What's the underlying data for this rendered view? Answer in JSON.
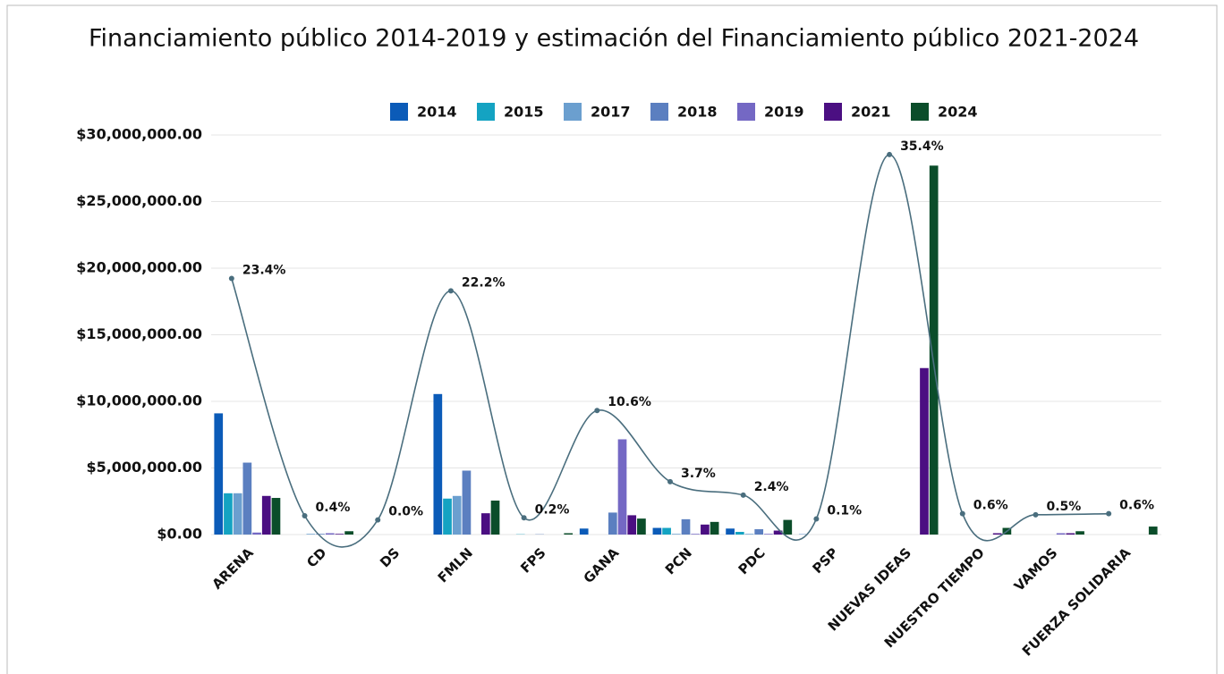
{
  "chart_data": {
    "type": "bar",
    "title": "Financiamiento público 2014-2019 y estimación del Financiamiento público 2021-2024",
    "categories": [
      "ARENA",
      "CD",
      "DS",
      "FMLN",
      "FPS",
      "GANA",
      "PCN",
      "PDC",
      "PSP",
      "NUEVAS IDEAS",
      "NUESTRO TIEMPO",
      "VAMOS",
      "FUERZA SOLIDARIA"
    ],
    "series": [
      {
        "name": "2014",
        "color": "#0b5bb8",
        "values": [
          9100000,
          0,
          0,
          10550000,
          0,
          450000,
          500000,
          450000,
          20000,
          0,
          0,
          0,
          0
        ]
      },
      {
        "name": "2015",
        "color": "#14a3c2",
        "values": [
          3100000,
          0,
          0,
          2700000,
          20000,
          0,
          500000,
          200000,
          0,
          0,
          0,
          0,
          0
        ]
      },
      {
        "name": "2017",
        "color": "#6b9fcf",
        "values": [
          3100000,
          50000,
          0,
          2900000,
          0,
          0,
          50000,
          50000,
          0,
          0,
          0,
          0,
          0
        ]
      },
      {
        "name": "2018",
        "color": "#5b7fc0",
        "values": [
          5400000,
          50000,
          0,
          4800000,
          20000,
          1650000,
          1150000,
          400000,
          0,
          0,
          0,
          0,
          0
        ]
      },
      {
        "name": "2019",
        "color": "#7468c4",
        "values": [
          150000,
          100000,
          0,
          0,
          0,
          7150000,
          50000,
          50000,
          0,
          0,
          0,
          100000,
          0
        ]
      },
      {
        "name": "2021",
        "color": "#4b0f82",
        "values": [
          2900000,
          50000,
          0,
          1600000,
          0,
          1450000,
          750000,
          300000,
          0,
          12500000,
          100000,
          100000,
          0
        ]
      },
      {
        "name": "2024",
        "color": "#0b4d2a",
        "values": [
          2750000,
          250000,
          0,
          2550000,
          100000,
          1200000,
          950000,
          1100000,
          0,
          27700000,
          500000,
          250000,
          600000
        ]
      },
      {
        "type": "line",
        "axis": "y2",
        "color": "#4a6e7e",
        "values": [
          23.4,
          0.4,
          0.0,
          22.2,
          0.2,
          10.6,
          3.7,
          2.4,
          0.1,
          35.4,
          0.6,
          0.5,
          0.6
        ],
        "value_labels": [
          "23.4%",
          "0.4%",
          "0.0%",
          "22.2%",
          "0.2%",
          "10.6%",
          "3.7%",
          "2.4%",
          "0.1%",
          "35.4%",
          "0.6%",
          "0.5%",
          "0.6%"
        ]
      }
    ],
    "ylim": [
      0,
      30000000
    ],
    "yticks": [
      {
        "value": 0,
        "label": "$0.00"
      },
      {
        "value": 5000000,
        "label": "$5,000,000.00"
      },
      {
        "value": 10000000,
        "label": "$10,000,000.00"
      },
      {
        "value": 15000000,
        "label": "$15,000,000.00"
      },
      {
        "value": 20000000,
        "label": "$20,000,000.00"
      },
      {
        "value": 25000000,
        "label": "$25,000,000.00"
      },
      {
        "value": 30000000,
        "label": "$30,000,000.00"
      }
    ],
    "y2lim": [
      -1.42,
      37.3
    ],
    "grid": true,
    "legend": "top"
  }
}
